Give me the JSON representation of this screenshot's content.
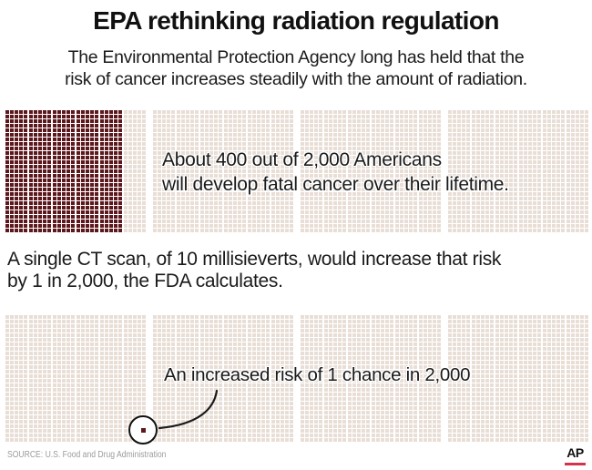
{
  "header": {
    "title": "EPA rethinking radiation regulation",
    "subtitle_lines": [
      "The Environmental Protection Agency long has held that the",
      "risk of cancer increases steadily with the amount of radiation."
    ]
  },
  "mid_text_lines": [
    "A single CT scan, of 10 millisieverts, would increase that risk",
    "by 1 in 2,000, the FDA calculates."
  ],
  "chart_data": [
    {
      "type": "waffle",
      "units_total": 2000,
      "units_highlighted": 400,
      "annotation_lines": [
        "About 400 out of 2,000 Americans",
        "will develop fatal cancer over their lifetime."
      ],
      "layout": {
        "blocks": 4,
        "groups_per_block": 6,
        "cols_per_group": 5,
        "rows": 27,
        "dark_cols": 25,
        "cell": 4,
        "pitch": 5,
        "group_gap": 2,
        "block_gap": 8
      }
    },
    {
      "type": "waffle",
      "units_total": 2000,
      "units_highlighted": 1,
      "annotation_lines": [
        "An increased risk of 1 chance in 2,000"
      ],
      "layout": {
        "blocks": 4,
        "groups_per_block": 6,
        "cols_per_group": 5,
        "rows": 28,
        "dark_cols": 0,
        "cell": 4,
        "pitch": 5,
        "group_gap": 2,
        "block_gap": 8
      },
      "highlight_cell": {
        "col": 29,
        "row": 25
      }
    }
  ],
  "colors": {
    "dark_square": "#5c181c",
    "light_square": "#e9ded6",
    "text": "#1a1a1a",
    "source_gray": "#9b9b9b",
    "ap_red": "#d2344a"
  },
  "footer": {
    "source": "SOURCE: U.S. Food and Drug Administration",
    "ap_logo": "AP"
  }
}
